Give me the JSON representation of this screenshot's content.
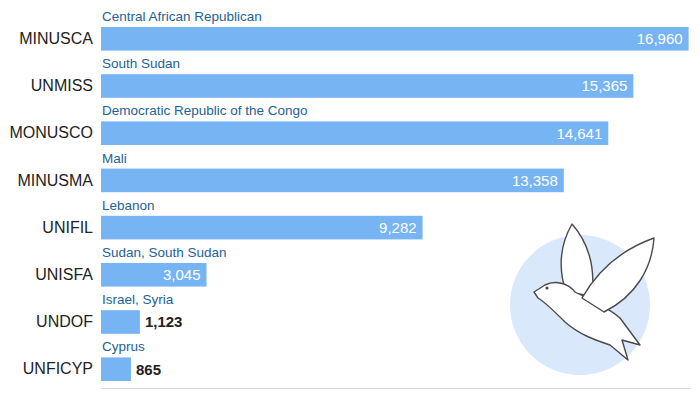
{
  "chart_data": {
    "type": "bar",
    "orientation": "horizontal",
    "categories": [
      "MINUSCA",
      "UNMISS",
      "MONUSCO",
      "MINUSMA",
      "UNIFIL",
      "UNISFA",
      "UNDOF",
      "UNFICYP"
    ],
    "regions": [
      "Central African Republican",
      "South Sudan",
      "Democratic Republic of the Congo",
      "Mali",
      "Lebanon",
      "Sudan, South Sudan",
      "Israel, Syria",
      "Cyprus"
    ],
    "values": [
      16960,
      15365,
      14641,
      13358,
      9282,
      3045,
      1123,
      865
    ],
    "value_labels": [
      "16,960",
      "15,365",
      "14,641",
      "13,358",
      "9,282",
      "3,045",
      "1,123",
      "865"
    ],
    "color": "#77b4f3",
    "xlim": [
      0,
      17000
    ],
    "data_labels": true,
    "tick_labels": false
  }
}
